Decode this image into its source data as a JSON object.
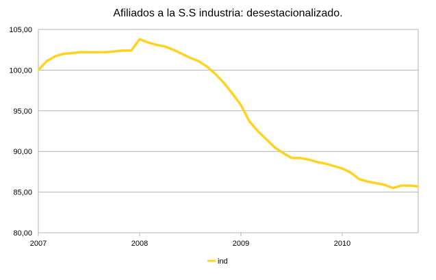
{
  "chart_data": {
    "type": "line",
    "title": "Afiliados a la S.S industria: desestacionalizado.",
    "xlabel": "",
    "ylabel": "",
    "ylim": [
      80,
      105
    ],
    "yticks": [
      "80,00",
      "85,00",
      "90,00",
      "95,00",
      "100,00",
      "105,00"
    ],
    "xticks": [
      "2007",
      "2008",
      "2009",
      "2010"
    ],
    "grid": true,
    "legend_position": "bottom",
    "x_unit": "months since Jan 2007",
    "series": [
      {
        "name": "ind",
        "color": "#FFD320",
        "values": [
          100.0,
          101.1,
          101.7,
          102.0,
          102.1,
          102.2,
          102.2,
          102.2,
          102.2,
          102.3,
          102.4,
          102.4,
          103.8,
          103.4,
          103.1,
          102.9,
          102.5,
          102.0,
          101.5,
          101.1,
          100.4,
          99.5,
          98.4,
          97.1,
          95.7,
          93.7,
          92.5,
          91.5,
          90.5,
          89.8,
          89.2,
          89.2,
          89.0,
          88.7,
          88.5,
          88.2,
          87.9,
          87.4,
          86.6,
          86.3,
          86.1,
          85.9,
          85.5,
          85.8,
          85.8,
          85.7
        ]
      }
    ]
  }
}
